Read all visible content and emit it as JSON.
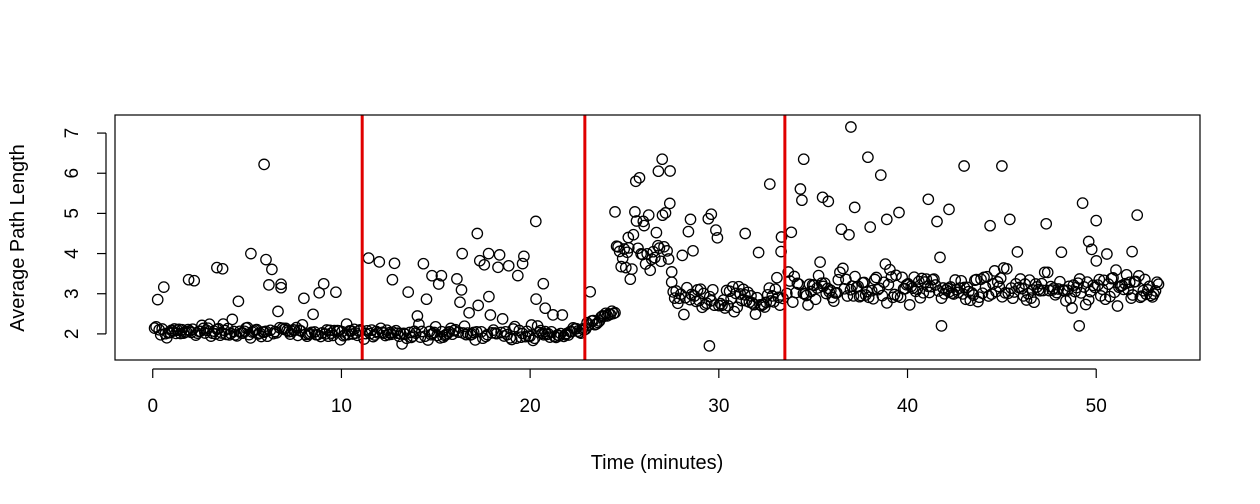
{
  "chart_data": {
    "type": "scatter",
    "title": "",
    "xlabel": "Time (minutes)",
    "ylabel": "Average Path Length",
    "xlim": [
      -2,
      55.5
    ],
    "ylim": [
      1.35,
      7.45
    ],
    "x_ticks": [
      0,
      10,
      20,
      30,
      40,
      50
    ],
    "y_ticks": [
      2,
      3,
      4,
      5,
      6,
      7
    ],
    "grid": false,
    "legend": "none",
    "marker": "open-circle",
    "marker_color": "#000000",
    "vlines": [
      {
        "x": 11.1,
        "color": "#e00000"
      },
      {
        "x": 22.9,
        "color": "#e00000"
      },
      {
        "x": 33.5,
        "color": "#e00000"
      }
    ],
    "segments": [
      {
        "x_start": 0.1,
        "x_end": 11.0,
        "base": 2.05,
        "spread": 0.18,
        "spike_rate": 0.16,
        "spike_max": 1.6
      },
      {
        "x_start": 11.2,
        "x_end": 20.8,
        "base": 2.0,
        "spread": 0.22,
        "spike_rate": 0.22,
        "spike_max": 2.0
      },
      {
        "x_start": 20.8,
        "x_end": 24.5,
        "base": 1.95,
        "spread": 0.15,
        "rise_to": 2.6,
        "spike_rate": 0.05,
        "spike_max": 0.8
      },
      {
        "x_start": 24.5,
        "x_end": 27.5,
        "base": 3.9,
        "spread": 0.9,
        "spike_rate": 0.25,
        "spike_max": 2.2
      },
      {
        "x_start": 27.5,
        "x_end": 33.4,
        "base": 2.85,
        "spread": 0.45,
        "spike_rate": 0.12,
        "spike_max": 2.0
      },
      {
        "x_start": 33.6,
        "x_end": 53.3,
        "base": 3.15,
        "spread": 0.5,
        "spike_rate": 0.1,
        "spike_max": 2.6
      }
    ],
    "highlight_points": [
      {
        "x": 5.9,
        "y": 6.22
      },
      {
        "x": 5.2,
        "y": 4.0
      },
      {
        "x": 6.0,
        "y": 3.85
      },
      {
        "x": 3.4,
        "y": 3.65
      },
      {
        "x": 3.7,
        "y": 3.62
      },
      {
        "x": 1.9,
        "y": 3.35
      },
      {
        "x": 6.8,
        "y": 3.15
      },
      {
        "x": 12.7,
        "y": 3.35
      },
      {
        "x": 14.8,
        "y": 3.45
      },
      {
        "x": 15.3,
        "y": 3.45
      },
      {
        "x": 16.4,
        "y": 4.0
      },
      {
        "x": 17.2,
        "y": 4.5
      },
      {
        "x": 17.8,
        "y": 4.0
      },
      {
        "x": 19.6,
        "y": 3.75
      },
      {
        "x": 20.3,
        "y": 4.8
      },
      {
        "x": 20.7,
        "y": 3.25
      },
      {
        "x": 25.2,
        "y": 4.4
      },
      {
        "x": 25.6,
        "y": 5.8
      },
      {
        "x": 26.0,
        "y": 4.8
      },
      {
        "x": 26.8,
        "y": 6.05
      },
      {
        "x": 27.0,
        "y": 6.35
      },
      {
        "x": 27.4,
        "y": 5.25
      },
      {
        "x": 28.5,
        "y": 4.85
      },
      {
        "x": 29.6,
        "y": 4.98
      },
      {
        "x": 29.5,
        "y": 1.7
      },
      {
        "x": 31.4,
        "y": 4.5
      },
      {
        "x": 32.7,
        "y": 5.73
      },
      {
        "x": 33.3,
        "y": 4.05
      },
      {
        "x": 34.5,
        "y": 6.35
      },
      {
        "x": 35.5,
        "y": 5.4
      },
      {
        "x": 35.8,
        "y": 5.3
      },
      {
        "x": 37.0,
        "y": 7.15
      },
      {
        "x": 37.2,
        "y": 5.15
      },
      {
        "x": 37.9,
        "y": 6.4
      },
      {
        "x": 38.9,
        "y": 4.85
      },
      {
        "x": 41.1,
        "y": 5.35
      },
      {
        "x": 42.2,
        "y": 5.1
      },
      {
        "x": 43.0,
        "y": 6.18
      },
      {
        "x": 45.0,
        "y": 6.18
      },
      {
        "x": 41.8,
        "y": 2.2
      },
      {
        "x": 49.1,
        "y": 2.2
      },
      {
        "x": 50.0,
        "y": 4.82
      },
      {
        "x": 49.6,
        "y": 4.3
      },
      {
        "x": 51.9,
        "y": 4.05
      }
    ]
  }
}
